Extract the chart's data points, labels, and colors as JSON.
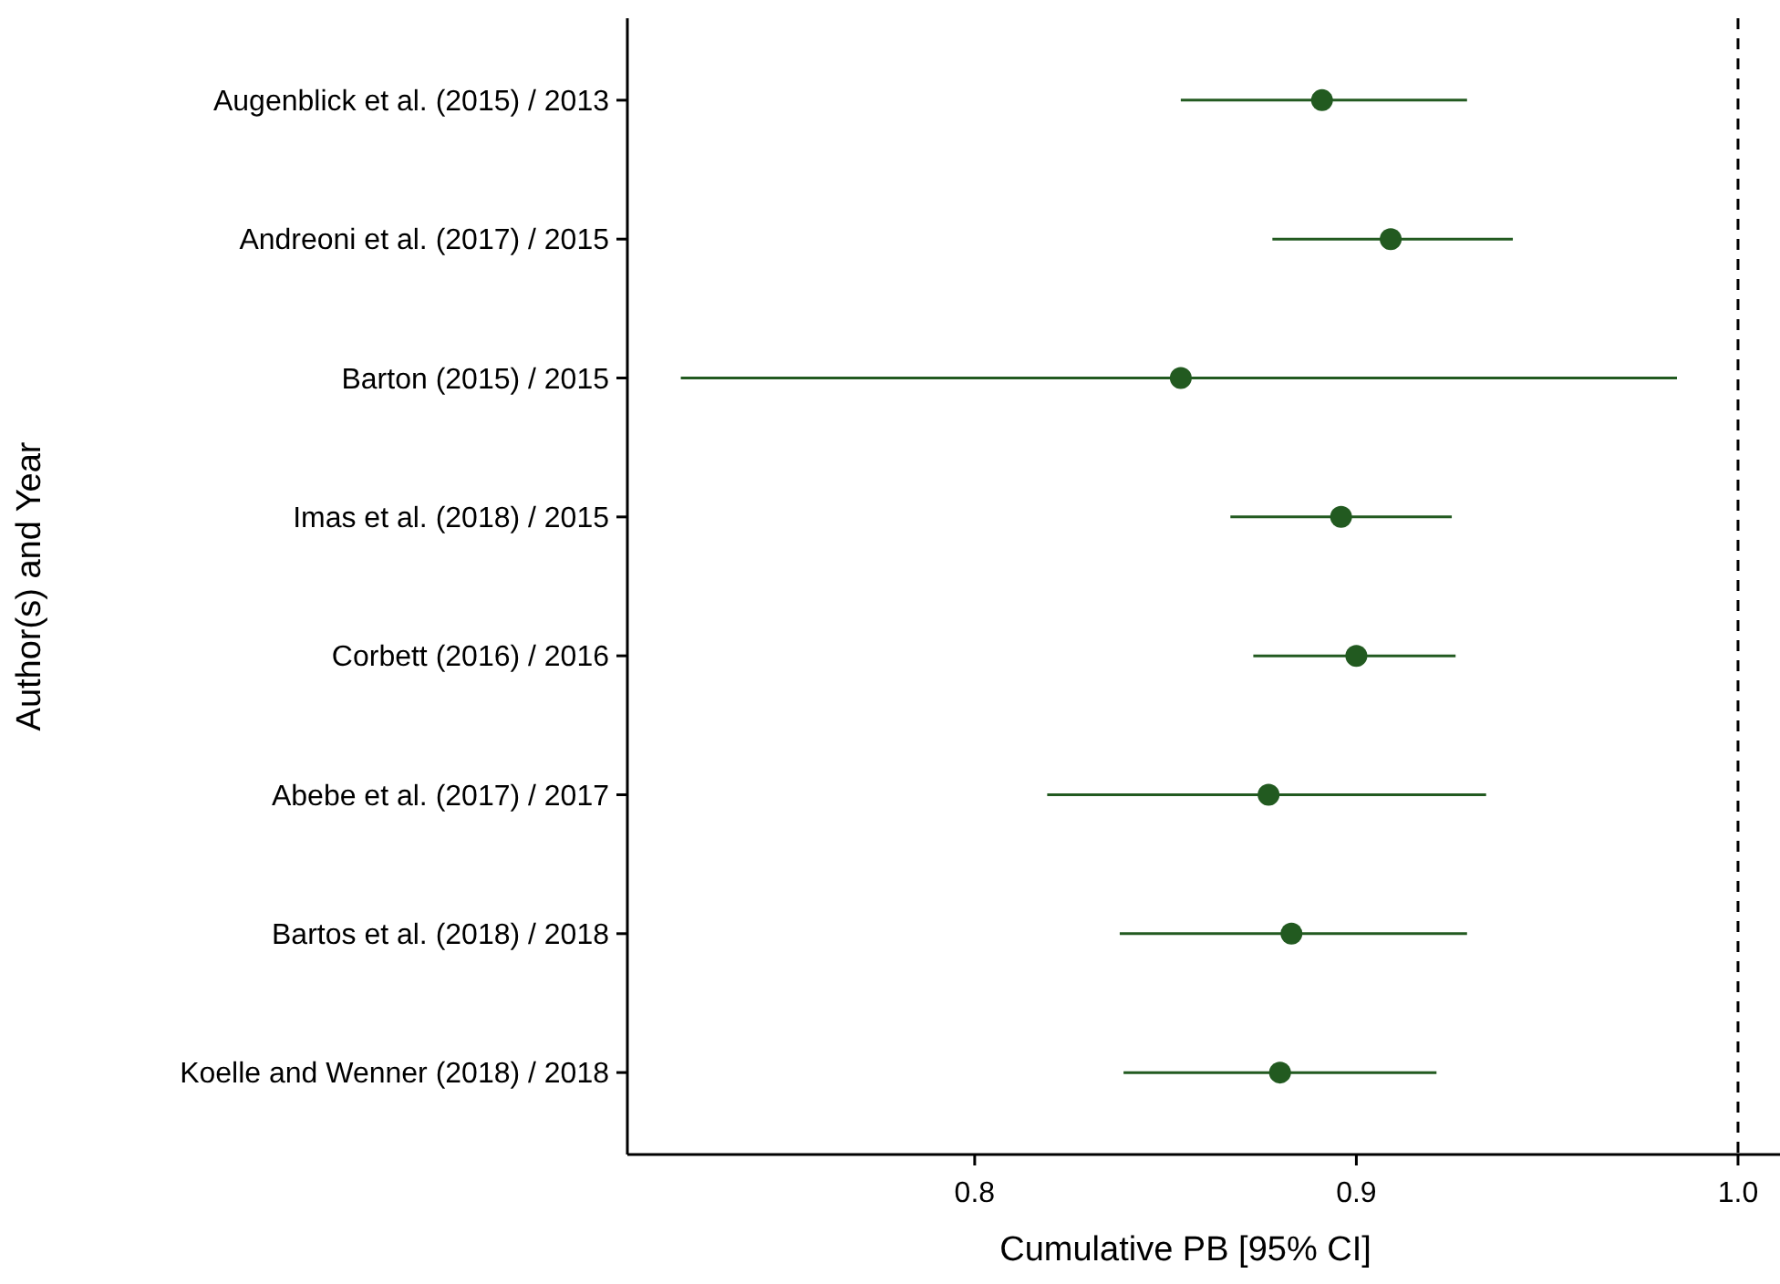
{
  "chart_data": {
    "type": "scatter",
    "orientation": "horizontal",
    "xlabel": "Cumulative PB [95% CI]",
    "ylabel": "Author(s) and Year",
    "categories": [
      "Augenblick et al. (2015) / 2013",
      "Andreoni et al. (2017) / 2015",
      "Barton (2015) / 2015",
      "Imas et al. (2018) / 2015",
      "Corbett (2016) / 2016",
      "Abebe et al. (2017) / 2017",
      "Bartos et al. (2018) / 2018",
      "Koelle and Wenner (2018) / 2018"
    ],
    "series": [
      {
        "color": "#225a20",
        "values": [
          0.891,
          0.909,
          0.854,
          0.896,
          0.9,
          0.877,
          0.883,
          0.88
        ],
        "errors": [
          [
            0.854,
            0.929
          ],
          [
            0.878,
            0.941
          ],
          [
            0.723,
            0.984
          ],
          [
            0.867,
            0.925
          ],
          [
            0.873,
            0.926
          ],
          [
            0.819,
            0.934
          ],
          [
            0.838,
            0.929
          ],
          [
            0.839,
            0.921
          ]
        ]
      }
    ],
    "xlim": [
      0.709,
      1.011
    ],
    "xticks": [
      {
        "value": 0.8,
        "label": "0.8"
      },
      {
        "value": 0.9,
        "label": "0.9"
      },
      {
        "value": 1.0,
        "label": "1.0"
      }
    ],
    "ref_lines": [
      {
        "axis": "x",
        "value": 1.0,
        "color": "#000000",
        "line_style": "dashed"
      }
    ],
    "marker": "circle",
    "grid": false
  }
}
